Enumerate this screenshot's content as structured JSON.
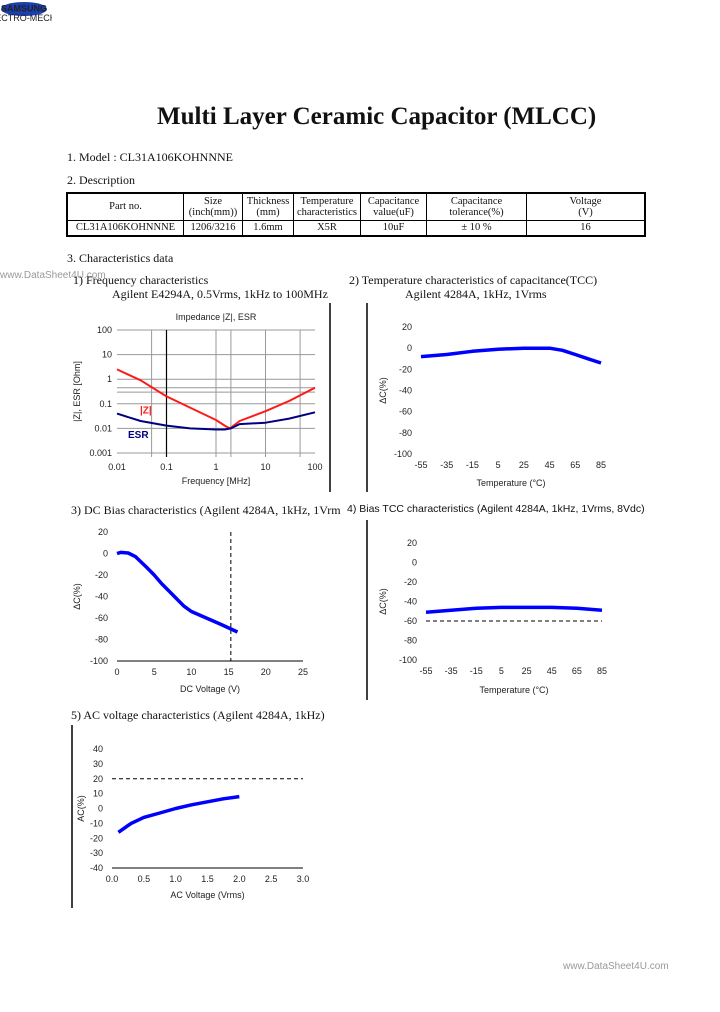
{
  "header": {
    "logo_text": "SAMSUNG",
    "logo_sub": "ELECTRO-MECHANICS",
    "title": "Multi Layer Ceramic Capacitor (MLCC)"
  },
  "watermark_top": "www.DataSheet4U.com",
  "watermark_bottom": "www.DataSheet4U.com",
  "model": "1. Model : CL31A106KOHNNNE",
  "description_heading": "2. Description",
  "table": {
    "headers": [
      [
        "Part no."
      ],
      [
        "Size",
        "(inch(mm))"
      ],
      [
        "Thickness",
        "(mm)"
      ],
      [
        "Temperature",
        "characteristics"
      ],
      [
        "Capacitance",
        "value(uF)"
      ],
      [
        "Capacitance",
        "tolerance(%)"
      ],
      [
        "Voltage",
        "(V)"
      ]
    ],
    "row": [
      "CL31A106KOHNNNE",
      "1206/3216",
      "1.6mm",
      "X5R",
      "10uF",
      "± 10 %",
      "16"
    ]
  },
  "characteristics_heading": "3. Characteristics data",
  "sections": [
    {
      "title": "1) Frequency characteristics",
      "subtitle": "Agilent E4294A, 0.5Vrms, 1kHz to 100MHz"
    },
    {
      "title": "2) Temperature characteristics of capacitance(TCC)",
      "subtitle": "Agilent 4284A, 1kHz, 1Vrms"
    },
    {
      "title": "3) DC Bias characteristics (Agilent 4284A, 1kHz, 1Vrm"
    },
    {
      "title": "4) Bias TCC characteristics (Agilent 4284A, 1kHz, 1Vrms, 8Vdc)"
    },
    {
      "title": "5) AC voltage characteristics (Agilent 4284A, 1kHz)"
    }
  ],
  "chart_data": [
    {
      "type": "line",
      "title": "Impedance |Z|, ESR",
      "xlabel": "Frequency [MHz]",
      "ylabel": "|Z|, ESR [Ohm]",
      "xscale": "log",
      "yscale": "log",
      "xlim": [
        0.01,
        100
      ],
      "ylim": [
        0.001,
        100
      ],
      "grid": true,
      "xticks": [
        "0.01",
        "0.1",
        "1",
        "10",
        "100"
      ],
      "yticks": [
        "0.001",
        "0.01",
        "0.1",
        "1",
        "10",
        "100"
      ],
      "series": [
        {
          "name": "|Z|",
          "color": "#ff1a1a",
          "x": [
            0.01,
            0.03,
            0.1,
            0.3,
            1,
            1.5,
            1.9,
            2.5,
            3,
            10,
            30,
            100
          ],
          "y": [
            2.5,
            0.9,
            0.2,
            0.07,
            0.022,
            0.013,
            0.01,
            0.015,
            0.02,
            0.05,
            0.13,
            0.45
          ]
        },
        {
          "name": "ESR",
          "color": "#000080",
          "x": [
            0.01,
            0.03,
            0.1,
            0.3,
            1,
            1.5,
            2,
            3,
            10,
            30,
            100
          ],
          "y": [
            0.04,
            0.02,
            0.013,
            0.01,
            0.009,
            0.009,
            0.01,
            0.015,
            0.017,
            0.025,
            0.045
          ]
        }
      ]
    },
    {
      "type": "line",
      "xlabel": "Temperature (°C)",
      "ylabel": "ΔC(%)",
      "xlim": [
        -55,
        85
      ],
      "ylim": [
        -100,
        20
      ],
      "xticks": [
        "-55",
        "-35",
        "-15",
        "5",
        "25",
        "45",
        "65",
        "85"
      ],
      "yticks": [
        "20",
        "0",
        "-20",
        "-40",
        "-60",
        "-80",
        "-100"
      ],
      "series": [
        {
          "color": "#0000ff",
          "x": [
            -55,
            -35,
            -15,
            5,
            25,
            45,
            55,
            65,
            75,
            85
          ],
          "y": [
            -8,
            -6,
            -3,
            -1,
            0,
            0,
            -2,
            -6,
            -10,
            -14
          ]
        }
      ]
    },
    {
      "type": "line",
      "xlabel": "DC Voltage (V)",
      "ylabel": "ΔC(%)",
      "xlim": [
        0,
        25
      ],
      "ylim": [
        -100,
        20
      ],
      "xticks": [
        "0",
        "5",
        "10",
        "15",
        "20",
        "25"
      ],
      "yticks": [
        "20",
        "0",
        "-20",
        "-40",
        "-60",
        "-80",
        "-100"
      ],
      "vline_dashed": 15.3,
      "series": [
        {
          "color": "#0000ff",
          "x": [
            0,
            0.5,
            1.5,
            2.5,
            4,
            5,
            6,
            7,
            8,
            9,
            10,
            12,
            14,
            16.2
          ],
          "y": [
            0,
            1,
            0.5,
            -3,
            -13,
            -20,
            -28,
            -35,
            -42,
            -49,
            -54,
            -60,
            -66,
            -73
          ]
        }
      ]
    },
    {
      "type": "line",
      "xlabel": "Temperature (°C)",
      "ylabel": "ΔC(%)",
      "xlim": [
        -55,
        85
      ],
      "ylim": [
        -100,
        20
      ],
      "xticks": [
        "-55",
        "-35",
        "-15",
        "5",
        "25",
        "45",
        "65",
        "85"
      ],
      "yticks": [
        "20",
        "0",
        "-20",
        "-40",
        "-60",
        "-80",
        "-100"
      ],
      "hline_dashed": -60,
      "series": [
        {
          "color": "#0000ff",
          "x": [
            -55,
            -35,
            -15,
            5,
            25,
            45,
            65,
            85
          ],
          "y": [
            -51,
            -49,
            -47,
            -46,
            -46,
            -46,
            -47,
            -49
          ]
        }
      ]
    },
    {
      "type": "line",
      "xlabel": "AC Voltage (Vrms)",
      "ylabel": "AC(%)",
      "xlim": [
        0,
        3
      ],
      "ylim": [
        -40,
        40
      ],
      "xticks": [
        "0.0",
        "0.5",
        "1.0",
        "1.5",
        "2.0",
        "2.5",
        "3.0"
      ],
      "yticks": [
        "40",
        "30",
        "20",
        "10",
        "0",
        "-10",
        "-20",
        "-30",
        "-40"
      ],
      "hline_dashed": 20,
      "series": [
        {
          "color": "#0000ff",
          "x": [
            0.1,
            0.3,
            0.5,
            0.75,
            1,
            1.25,
            1.5,
            1.75,
            2
          ],
          "y": [
            -16,
            -10,
            -6,
            -3,
            0,
            2.5,
            4.5,
            6.5,
            8
          ]
        }
      ]
    }
  ]
}
